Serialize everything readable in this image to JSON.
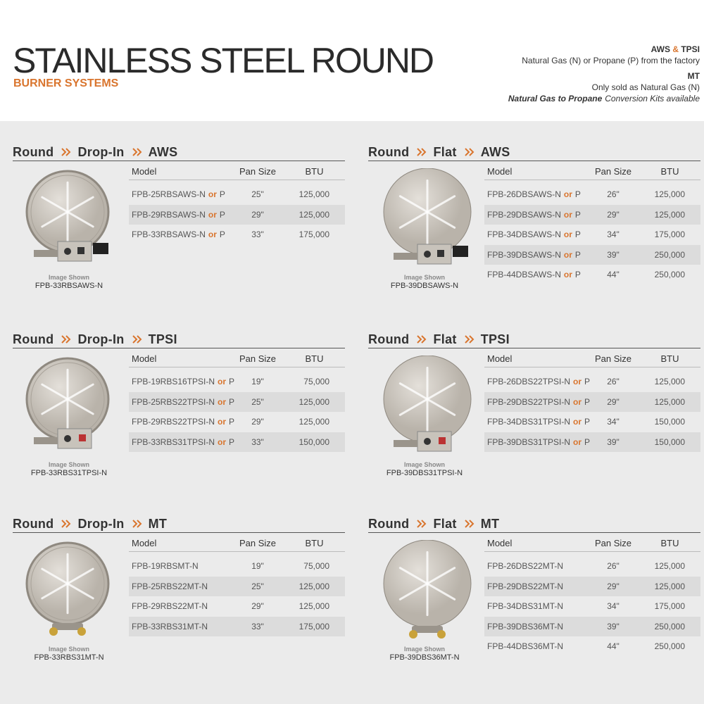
{
  "header": {
    "title": "STAINLESS STEEL ROUND",
    "subtitle": "BURNER SYSTEMS",
    "notes": [
      {
        "title_parts": [
          "AWS",
          "&",
          "TPSI"
        ],
        "text": "Natural Gas (N) or Propane (P) from the factory"
      },
      {
        "title_parts": [
          "MT"
        ],
        "text": "Only sold as Natural Gas (N)"
      }
    ],
    "footnote": [
      "Natural Gas to Propane",
      "Conversion Kits available"
    ]
  },
  "sections": [
    {
      "breadcrumb": [
        "Round",
        "Drop-In",
        "AWS"
      ],
      "columns": [
        "Model",
        "Pan Size",
        "BTU"
      ],
      "rows": [
        {
          "model": "FPB-25RBSAWS-N",
          "or": "or",
          "alt": "P",
          "size": "25\"",
          "btu": "125,000"
        },
        {
          "model": "FPB-29RBSAWS-N",
          "or": "or",
          "alt": "P",
          "size": "29\"",
          "btu": "125,000"
        },
        {
          "model": "FPB-33RBSAWS-N",
          "or": "or",
          "alt": "P",
          "size": "33\"",
          "btu": "175,000"
        }
      ],
      "image_label": "Image Shown",
      "image_model": "FPB-33RBSAWS-N"
    },
    {
      "breadcrumb": [
        "Round",
        "Flat",
        "AWS"
      ],
      "columns": [
        "Model",
        "Pan Size",
        "BTU"
      ],
      "rows": [
        {
          "model": "FPB-26DBSAWS-N",
          "or": "or",
          "alt": "P",
          "size": "26\"",
          "btu": "125,000"
        },
        {
          "model": "FPB-29DBSAWS-N",
          "or": "or",
          "alt": "P",
          "size": "29\"",
          "btu": "125,000"
        },
        {
          "model": "FPB-34DBSAWS-N",
          "or": "or",
          "alt": "P",
          "size": "34\"",
          "btu": "175,000"
        },
        {
          "model": "FPB-39DBSAWS-N",
          "or": "or",
          "alt": "P",
          "size": "39\"",
          "btu": "250,000"
        },
        {
          "model": "FPB-44DBSAWS-N",
          "or": "or",
          "alt": "P",
          "size": "44\"",
          "btu": "250,000"
        }
      ],
      "image_label": "Image Shown",
      "image_model": "FPB-39DBSAWS-N"
    },
    {
      "breadcrumb": [
        "Round",
        "Drop-In",
        "TPSI"
      ],
      "columns": [
        "Model",
        "Pan Size",
        "BTU"
      ],
      "rows": [
        {
          "model": "FPB-19RBS16TPSI-N",
          "or": "or",
          "alt": "P",
          "size": "19\"",
          "btu": "75,000"
        },
        {
          "model": "FPB-25RBS22TPSI-N",
          "or": "or",
          "alt": "P",
          "size": "25\"",
          "btu": "125,000"
        },
        {
          "model": "FPB-29RBS22TPSI-N",
          "or": "or",
          "alt": "P",
          "size": "29\"",
          "btu": "125,000"
        },
        {
          "model": "FPB-33RBS31TPSI-N",
          "or": "or",
          "alt": "P",
          "size": "33\"",
          "btu": "150,000"
        }
      ],
      "image_label": "Image Shown",
      "image_model": "FPB-33RBS31TPSI-N"
    },
    {
      "breadcrumb": [
        "Round",
        "Flat",
        "TPSI"
      ],
      "columns": [
        "Model",
        "Pan Size",
        "BTU"
      ],
      "rows": [
        {
          "model": "FPB-26DBS22TPSI-N",
          "or": "or",
          "alt": "P",
          "size": "26\"",
          "btu": "125,000"
        },
        {
          "model": "FPB-29DBS22TPSI-N",
          "or": "or",
          "alt": "P",
          "size": "29\"",
          "btu": "125,000"
        },
        {
          "model": "FPB-34DBS31TPSI-N",
          "or": "or",
          "alt": "P",
          "size": "34\"",
          "btu": "150,000"
        },
        {
          "model": "FPB-39DBS31TPSI-N",
          "or": "or",
          "alt": "P",
          "size": "39\"",
          "btu": "150,000"
        }
      ],
      "image_label": "Image Shown",
      "image_model": "FPB-39DBS31TPSI-N"
    },
    {
      "breadcrumb": [
        "Round",
        "Drop-In",
        "MT"
      ],
      "columns": [
        "Model",
        "Pan Size",
        "BTU"
      ],
      "rows": [
        {
          "model": "FPB-19RBSMT-N",
          "size": "19\"",
          "btu": "75,000"
        },
        {
          "model": "FPB-25RBS22MT-N",
          "size": "25\"",
          "btu": "125,000"
        },
        {
          "model": "FPB-29RBS22MT-N",
          "size": "29\"",
          "btu": "125,000"
        },
        {
          "model": "FPB-33RBS31MT-N",
          "size": "33\"",
          "btu": "175,000"
        }
      ],
      "image_label": "Image Shown",
      "image_model": "FPB-33RBS31MT-N"
    },
    {
      "breadcrumb": [
        "Round",
        "Flat",
        "MT"
      ],
      "columns": [
        "Model",
        "Pan Size",
        "BTU"
      ],
      "rows": [
        {
          "model": "FPB-26DBS22MT-N",
          "size": "26\"",
          "btu": "125,000"
        },
        {
          "model": "FPB-29DBS22MT-N",
          "size": "29\"",
          "btu": "125,000"
        },
        {
          "model": "FPB-34DBS31MT-N",
          "size": "34\"",
          "btu": "175,000"
        },
        {
          "model": "FPB-39DBS36MT-N",
          "size": "39\"",
          "btu": "250,000"
        },
        {
          "model": "FPB-44DBS36MT-N",
          "size": "44\"",
          "btu": "250,000"
        }
      ],
      "image_label": "Image Shown",
      "image_model": "FPB-39DBS36MT-N"
    }
  ]
}
